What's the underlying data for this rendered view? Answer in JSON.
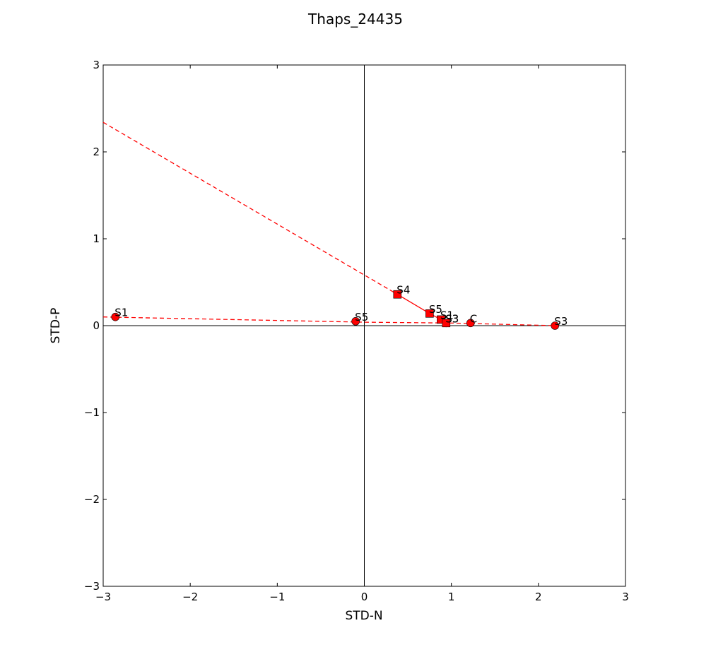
{
  "chart_data": {
    "type": "scatter",
    "title": "Thaps_24435",
    "xlabel": "STD-N",
    "ylabel": "STD-P",
    "xlim": [
      -3,
      3
    ],
    "ylim": [
      -3,
      3
    ],
    "xticks": [
      -3,
      -2,
      -1,
      0,
      1,
      2,
      3
    ],
    "yticks": [
      -3,
      -2,
      -1,
      0,
      1,
      2,
      3
    ],
    "xtick_labels": [
      "−3",
      "−2",
      "−1",
      "0",
      "1",
      "2",
      "3"
    ],
    "ytick_labels": [
      "−3",
      "−2",
      "−1",
      "0",
      "1",
      "2",
      "3"
    ],
    "grid": false,
    "color": "#ff0000",
    "series": [
      {
        "name": "circles",
        "marker": "circle",
        "points": [
          {
            "label": "S1",
            "x": -2.86,
            "y": 0.1
          },
          {
            "label": "S5",
            "x": -0.1,
            "y": 0.05
          },
          {
            "label": "S3",
            "x": 0.94,
            "y": 0.03
          },
          {
            "label": "C",
            "x": 1.22,
            "y": 0.03
          },
          {
            "label": "S3",
            "x": 2.19,
            "y": 0.0
          }
        ]
      },
      {
        "name": "squares",
        "marker": "square",
        "points": [
          {
            "label": "S4",
            "x": 0.38,
            "y": 0.36
          },
          {
            "label": "S5",
            "x": 0.75,
            "y": 0.14
          },
          {
            "label": "S1",
            "x": 0.88,
            "y": 0.07
          },
          {
            "label": "S3",
            "x": 0.94,
            "y": 0.03
          }
        ]
      }
    ],
    "solid_line": [
      {
        "x": 0.38,
        "y": 0.36
      },
      {
        "x": 0.75,
        "y": 0.14
      },
      {
        "x": 0.88,
        "y": 0.07
      },
      {
        "x": 0.94,
        "y": 0.03
      }
    ],
    "dashed_lines": [
      [
        {
          "x": -3.0,
          "y": 2.34
        },
        {
          "x": 0.38,
          "y": 0.36
        }
      ],
      [
        {
          "x": -3.0,
          "y": 0.1
        },
        {
          "x": -2.0,
          "y": 0.08
        },
        {
          "x": 0.0,
          "y": 0.04
        },
        {
          "x": 1.0,
          "y": 0.03
        },
        {
          "x": 2.19,
          "y": 0.0
        }
      ]
    ]
  }
}
